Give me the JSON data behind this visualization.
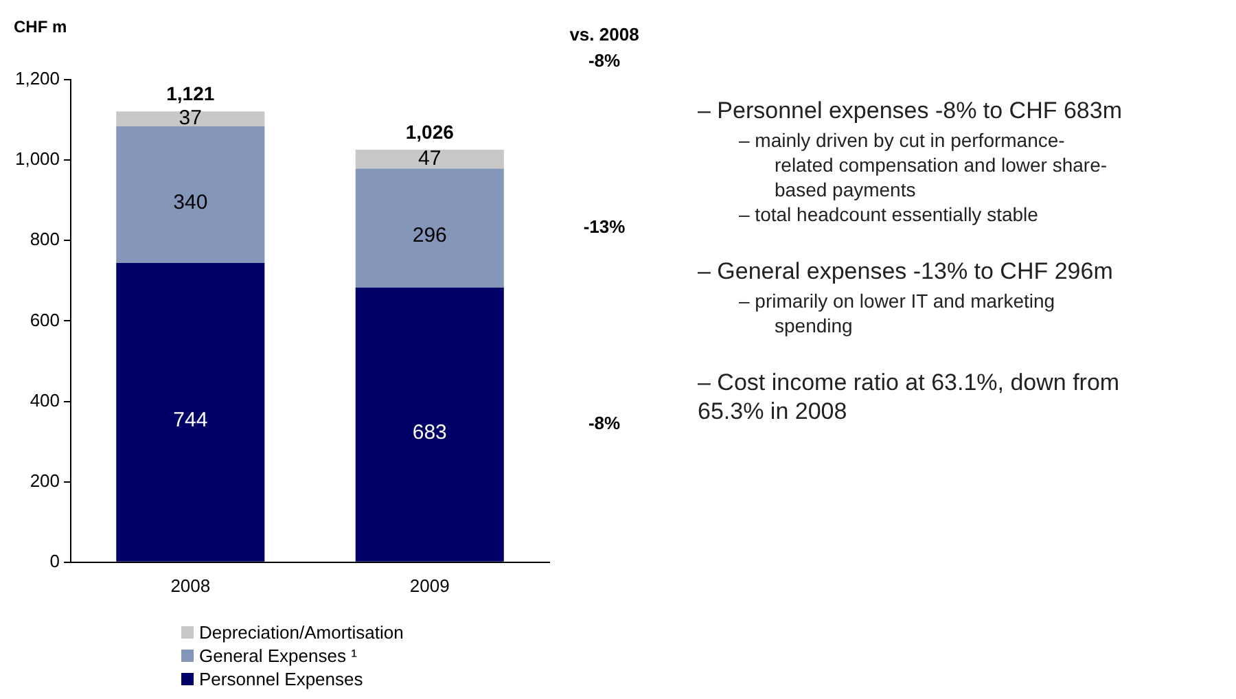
{
  "chart_data": {
    "type": "bar",
    "stacked": true,
    "ylabel": "CHF m",
    "categories": [
      "2008",
      "2009"
    ],
    "series": [
      {
        "name": "Personnel Expenses",
        "color": "#000066",
        "values": [
          744,
          683
        ]
      },
      {
        "name": "General Expenses ¹",
        "color": "#8497b8",
        "values": [
          340,
          296
        ]
      },
      {
        "name": "Depreciation/Amortisation",
        "color": "#c8c8c8",
        "values": [
          37,
          47
        ]
      }
    ],
    "ylim": [
      0,
      1200
    ],
    "yticks": [
      0,
      200,
      400,
      600,
      800,
      {
        "value": 1000,
        "label": "1,000"
      },
      {
        "value": 1200,
        "label": "1,200"
      }
    ],
    "data_labels": true,
    "totals": [
      "1,121",
      "1,026"
    ],
    "grid": false,
    "legend": "bottom",
    "annotations": [
      "vs. 2008",
      "-8%",
      "-13%",
      "-8%",
      "– Personnel expenses -8% to CHF 683m",
      "– mainly driven by cut in performance-related compensation and lower share-based payments",
      "– total headcount essentially stable",
      "– General expenses -13% to CHF 296m",
      "– primarily on lower IT and marketing spending",
      "– Cost income ratio at 63.1%, down from 65.3% in 2008"
    ]
  }
}
